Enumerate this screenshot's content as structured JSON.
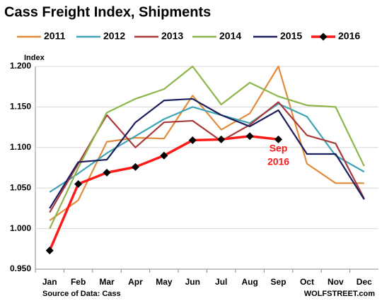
{
  "chart_data": {
    "type": "line",
    "title": "Cass Freight Index,  Shipments",
    "y_label": "Index",
    "annotation": [
      "Sep",
      "2016"
    ],
    "source": "Source of Data: Cass",
    "credit": "WOLFSTREET.com",
    "categories": [
      "Jan",
      "Feb",
      "Mar",
      "Apr",
      "May",
      "Jun",
      "Jul",
      "Aug",
      "Sep",
      "Oct",
      "Nov",
      "Dec"
    ],
    "series": [
      {
        "name": "2011",
        "color": "#e08c3c",
        "values": [
          1.01,
          1.035,
          1.107,
          1.112,
          1.111,
          1.164,
          1.122,
          1.142,
          1.2,
          1.08,
          1.056,
          1.056
        ]
      },
      {
        "name": "2012",
        "color": "#3fa4b4",
        "values": [
          1.045,
          1.068,
          1.093,
          1.114,
          1.135,
          1.15,
          1.14,
          1.13,
          1.154,
          1.138,
          1.09,
          1.07
        ]
      },
      {
        "name": "2013",
        "color": "#a83a3c",
        "values": [
          1.02,
          1.08,
          1.14,
          1.1,
          1.131,
          1.133,
          1.108,
          1.128,
          1.156,
          1.115,
          1.105,
          1.037
        ]
      },
      {
        "name": "2014",
        "color": "#8db64a",
        "values": [
          1.0,
          1.075,
          1.143,
          1.16,
          1.172,
          1.2,
          1.153,
          1.18,
          1.163,
          1.152,
          1.15,
          1.077
        ]
      },
      {
        "name": "2015",
        "color": "#1c1f5e",
        "values": [
          1.025,
          1.082,
          1.085,
          1.131,
          1.158,
          1.16,
          1.14,
          1.126,
          1.146,
          1.092,
          1.092,
          1.036
        ]
      },
      {
        "name": "2016",
        "color": "#ff1a1a",
        "marker": "diamond",
        "values": [
          0.973,
          1.055,
          1.069,
          1.076,
          1.09,
          1.109,
          1.11,
          1.114,
          1.11,
          null,
          null,
          null
        ]
      }
    ],
    "ylim": [
      0.95,
      1.2
    ],
    "yticks": [
      {
        "value": 0.95,
        "label": "0.950"
      },
      {
        "value": 1.0,
        "label": "1.000"
      },
      {
        "value": 1.05,
        "label": "1.050"
      },
      {
        "value": 1.1,
        "label": "1.100"
      },
      {
        "value": 1.15,
        "label": "1.150"
      },
      {
        "value": 1.2,
        "label": "1.200"
      }
    ],
    "grid": true
  }
}
